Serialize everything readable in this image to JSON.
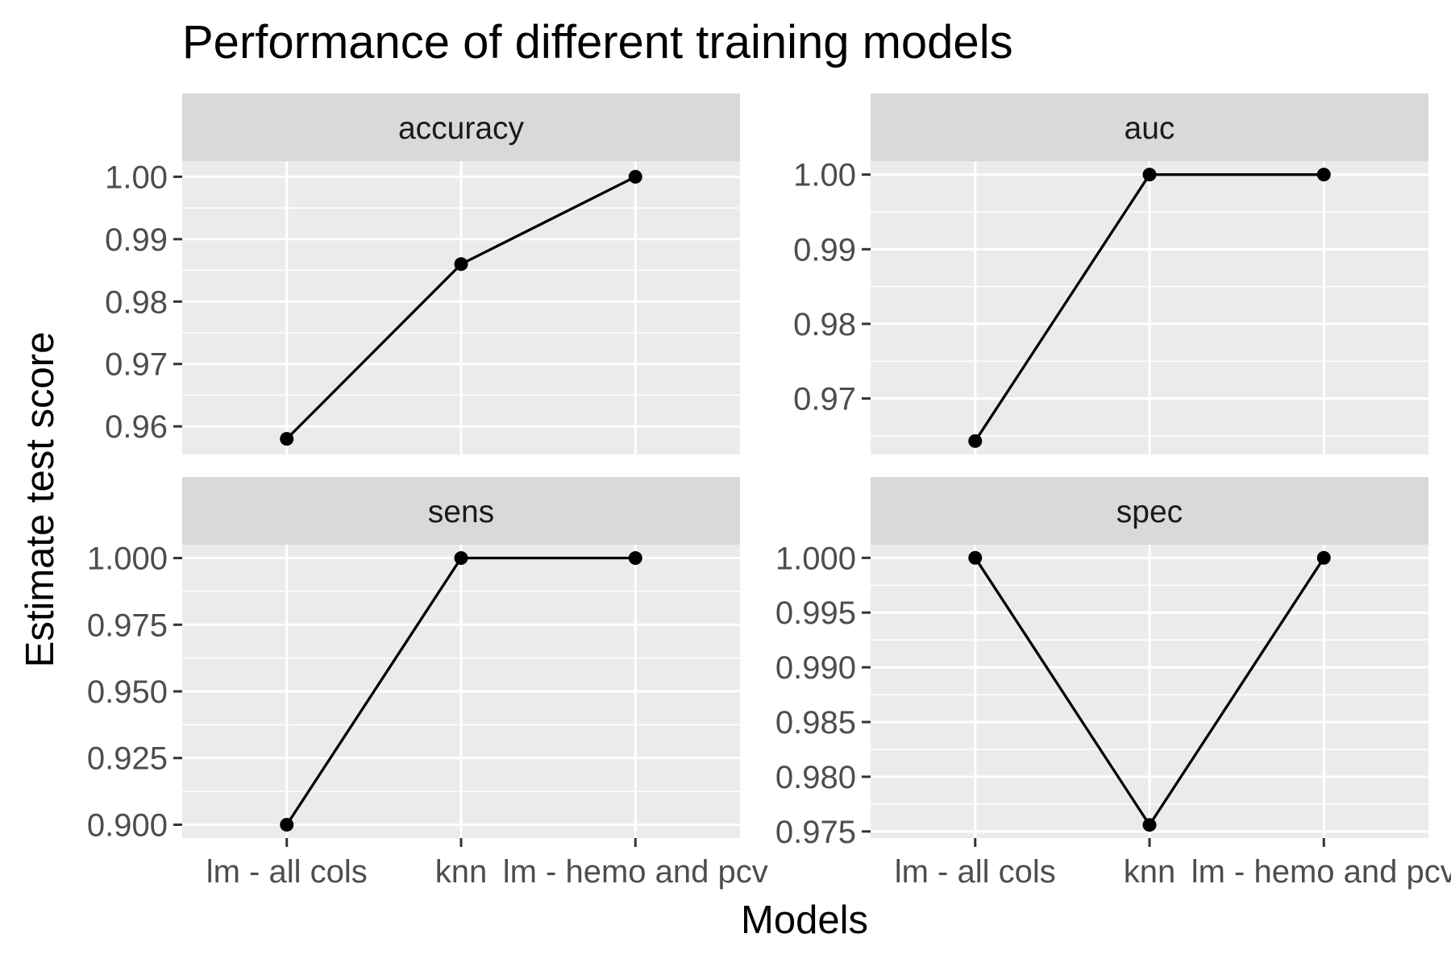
{
  "chart_data": {
    "type": "line",
    "title": "Performance of different training models",
    "xlabel": "Models",
    "ylabel": "Estimate test score",
    "categories": [
      "lm - all cols",
      "knn",
      "lm - hemo and pcv"
    ],
    "grid": true,
    "colors": {
      "panel": "#ebebeb",
      "strip": "#d9d9d9",
      "line": "#000000"
    },
    "facets": [
      {
        "name": "accuracy",
        "values": [
          0.958,
          0.986,
          1.0
        ],
        "ylim": [
          0.9555,
          1.0025
        ],
        "yticks": [
          0.96,
          0.97,
          0.98,
          0.99,
          1.0
        ],
        "ytick_labels": [
          "0.96",
          "0.97",
          "0.98",
          "0.99",
          "1.00"
        ]
      },
      {
        "name": "auc",
        "values": [
          0.9643,
          1.0,
          1.0
        ],
        "ylim": [
          0.9625,
          1.0018
        ],
        "yticks": [
          0.97,
          0.98,
          0.99,
          1.0
        ],
        "ytick_labels": [
          "0.97",
          "0.98",
          "0.99",
          "1.00"
        ]
      },
      {
        "name": "sens",
        "values": [
          0.9,
          1.0,
          1.0
        ],
        "ylim": [
          0.895,
          1.005
        ],
        "yticks": [
          0.9,
          0.925,
          0.95,
          0.975,
          1.0
        ],
        "ytick_labels": [
          "0.900",
          "0.925",
          "0.950",
          "0.975",
          "1.000"
        ]
      },
      {
        "name": "spec",
        "values": [
          1.0,
          0.9756,
          1.0
        ],
        "ylim": [
          0.9744,
          1.0012
        ],
        "yticks": [
          0.975,
          0.98,
          0.985,
          0.99,
          0.995,
          1.0
        ],
        "ytick_labels": [
          "0.975",
          "0.980",
          "0.985",
          "0.990",
          "0.995",
          "1.000"
        ]
      }
    ]
  }
}
